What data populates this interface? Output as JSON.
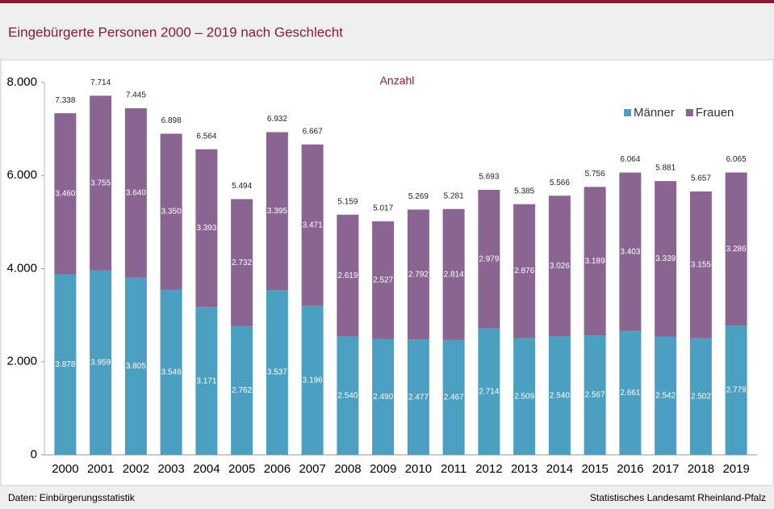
{
  "header": {
    "title": "Eingebürgerte Personen 2000 – 2019 nach Geschlecht"
  },
  "chart_data": {
    "type": "stacked_bar",
    "subtitle": "Anzahl",
    "categories": [
      "2000",
      "2001",
      "2002",
      "2003",
      "2004",
      "2005",
      "2006",
      "2007",
      "2008",
      "2009",
      "2010",
      "2011",
      "2012",
      "2013",
      "2014",
      "2015",
      "2016",
      "2017",
      "2018",
      "2019"
    ],
    "series": [
      {
        "name": "Männer",
        "color": "#4b9fc1",
        "values": [
          3878,
          3959,
          3805,
          3548,
          3171,
          2762,
          3537,
          3196,
          2540,
          2490,
          2477,
          2467,
          2714,
          2509,
          2540,
          2567,
          2661,
          2542,
          2502,
          2779
        ],
        "value_labels": [
          "3.878",
          "3.959",
          "3.805",
          "3.548",
          "3.171",
          "2.762",
          "3.537",
          "3.196",
          "2.540",
          "2.490",
          "2.477",
          "2.467",
          "2.714",
          "2.509",
          "2.540",
          "2.567",
          "2.661",
          "2.542",
          "2.502",
          "2.779"
        ]
      },
      {
        "name": "Frauen",
        "color": "#8a6592",
        "values": [
          3460,
          3755,
          3640,
          3350,
          3393,
          2732,
          3395,
          3471,
          2619,
          2527,
          2792,
          2814,
          2979,
          2876,
          3026,
          3189,
          3403,
          3339,
          3155,
          3286
        ],
        "value_labels": [
          "3.460",
          "3.755",
          "3.640",
          "3.350",
          "3.393",
          "2.732",
          "3.395",
          "3.471",
          "2.619",
          "2.527",
          "2.792",
          "2.814",
          "2.979",
          "2.876",
          "3.026",
          "3.189",
          "3.403",
          "3.339",
          "3.155",
          "3.286"
        ]
      }
    ],
    "totals": {
      "values": [
        7338,
        7714,
        7445,
        6898,
        6564,
        5494,
        6932,
        6667,
        5159,
        5017,
        5269,
        5281,
        5693,
        5385,
        5566,
        5756,
        6064,
        5881,
        5657,
        6065
      ],
      "value_labels": [
        "7.338",
        "7.714",
        "7.445",
        "6.898",
        "6.564",
        "5.494",
        "6.932",
        "6.667",
        "5.159",
        "5.017",
        "5.269",
        "5.281",
        "5.693",
        "5.385",
        "5.566",
        "5.756",
        "6.064",
        "5.881",
        "5.657",
        "6.065"
      ]
    },
    "ylim": [
      0,
      8000
    ],
    "yticks": [
      0,
      {
        "value": 2000,
        "label": "2.000"
      },
      {
        "value": 4000,
        "label": "4.000"
      },
      {
        "value": 6000,
        "label": "6.000"
      },
      {
        "value": 8000,
        "label": "8.000"
      }
    ],
    "legend": "top-right",
    "grid": false
  },
  "footer": {
    "source": "Daten:  Einbürgerungsstatistik",
    "publisher": "Statistisches Landesamt Rheinland-Pfalz"
  }
}
